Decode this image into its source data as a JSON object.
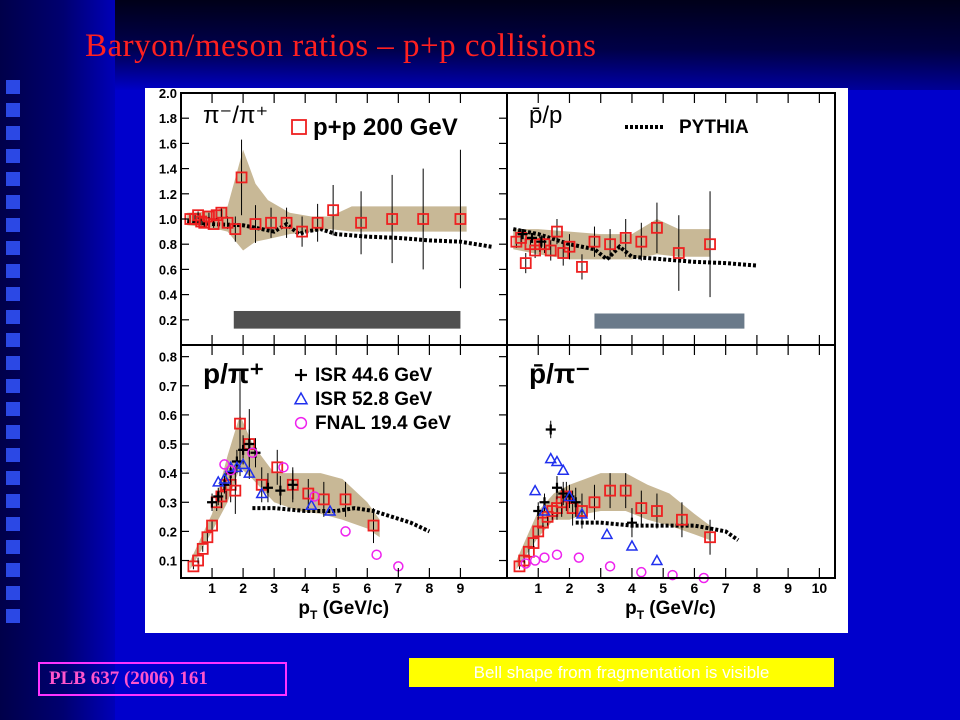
{
  "slide": {
    "title": "Baryon/meson ratios – p+p collisions",
    "reference": "PLB 637 (2006) 161",
    "note": "Bell shape from fragmentation is visible"
  },
  "colors": {
    "title": "#ff2020",
    "background": "#0000cc",
    "note_background": "#ffff00",
    "reference_border": "#ff33ff",
    "pp200": "#ee2020",
    "isr446": "#000000",
    "isr528": "#2030ee",
    "fnal194": "#ee22ee",
    "band": "#c8b896",
    "pythia": "#000000"
  },
  "chart_data": [
    {
      "type": "scatter",
      "panel_label": "π⁻/π⁺",
      "x_ticks": [
        1,
        2,
        3,
        4,
        5,
        6,
        7,
        8,
        9
      ],
      "y_ticks": [
        "0.2",
        "0.4",
        "0.6",
        "0.8",
        "1.0",
        "1.2",
        "1.4",
        "1.6",
        "1.8",
        "2.0"
      ],
      "xlim": [
        0,
        10.5
      ],
      "ylim": [
        0,
        2.0
      ],
      "legend": [
        {
          "name": "p+p 200 GeV",
          "marker": "square"
        }
      ],
      "series": [
        {
          "name": "p+p 200 GeV",
          "x": [
            0.3,
            0.45,
            0.55,
            0.65,
            0.75,
            0.9,
            1.05,
            1.15,
            1.3,
            1.5,
            1.75,
            1.95,
            2.4,
            2.9,
            3.4,
            3.9,
            4.4,
            4.9,
            5.8,
            6.8,
            7.8,
            9.0
          ],
          "y": [
            1.0,
            1.0,
            1.03,
            0.98,
            0.97,
            1.02,
            0.96,
            1.03,
            1.05,
            0.97,
            0.92,
            1.33,
            0.96,
            0.97,
            0.97,
            0.9,
            0.97,
            1.07,
            0.97,
            1.0,
            1.0,
            1.0
          ],
          "err": [
            0.03,
            0.03,
            0.03,
            0.03,
            0.03,
            0.03,
            0.03,
            0.03,
            0.04,
            0.05,
            0.1,
            0.3,
            0.15,
            0.12,
            0.12,
            0.12,
            0.15,
            0.2,
            0.25,
            0.35,
            0.4,
            0.55
          ]
        }
      ],
      "band": {
        "x": [
          0.2,
          1.0,
          1.5,
          2.0,
          2.4,
          2.8,
          3.5,
          4.2,
          4.8,
          5.5,
          6.5,
          7.5,
          8.5,
          9.2
        ],
        "lo": [
          0.95,
          0.93,
          0.9,
          0.75,
          0.82,
          0.84,
          0.88,
          0.9,
          0.92,
          0.9,
          0.9,
          0.9,
          0.9,
          0.9
        ],
        "hi": [
          1.05,
          1.06,
          1.1,
          1.55,
          1.28,
          1.15,
          1.05,
          1.02,
          1.02,
          1.1,
          1.1,
          1.1,
          1.1,
          1.1
        ]
      },
      "pythia": {
        "x": [
          0.2,
          1.0,
          2.0,
          3.0,
          3.4,
          3.8,
          4.0,
          4.5,
          5.0,
          6.0,
          7.0,
          8.0,
          9.0,
          10.0
        ],
        "y": [
          0.98,
          0.96,
          0.95,
          0.9,
          0.96,
          0.88,
          0.9,
          0.92,
          0.88,
          0.86,
          0.85,
          0.83,
          0.82,
          0.78
        ]
      },
      "gray_bar": {
        "x": [
          1.7,
          9.0
        ],
        "y": [
          0.13,
          0.27
        ],
        "color": "#505050"
      }
    },
    {
      "type": "scatter",
      "panel_label": "p̄/p",
      "x_ticks": [
        1,
        2,
        3,
        4,
        5,
        6,
        7,
        8,
        9,
        10
      ],
      "xlim": [
        0,
        10.5
      ],
      "ylim": [
        0,
        2.0
      ],
      "legend": [
        {
          "name": "PYTHIA",
          "marker": "dotted-line"
        }
      ],
      "series": [
        {
          "name": "p+p 200 GeV",
          "x": [
            0.3,
            0.45,
            0.6,
            0.75,
            0.9,
            1.05,
            1.2,
            1.4,
            1.6,
            1.8,
            2.0,
            2.4,
            2.8,
            3.3,
            3.8,
            4.3,
            4.8,
            5.5,
            6.5
          ],
          "y": [
            0.82,
            0.85,
            0.65,
            0.8,
            0.75,
            0.8,
            0.8,
            0.75,
            0.9,
            0.73,
            0.78,
            0.62,
            0.82,
            0.8,
            0.85,
            0.82,
            0.93,
            0.73,
            0.8
          ],
          "err": [
            0.05,
            0.05,
            0.08,
            0.05,
            0.06,
            0.06,
            0.07,
            0.08,
            0.1,
            0.1,
            0.1,
            0.1,
            0.12,
            0.12,
            0.15,
            0.15,
            0.2,
            0.3,
            0.42
          ]
        },
        {
          "name": "ISR 44.6 GeV",
          "x": [
            0.5,
            0.8,
            1.1
          ],
          "y": [
            0.88,
            0.85,
            0.82
          ],
          "err": [
            0.04,
            0.04,
            0.05
          ]
        }
      ],
      "band": {
        "x": [
          0.2,
          1.0,
          2.0,
          3.0,
          4.0,
          4.8,
          5.5,
          6.5
        ],
        "lo": [
          0.76,
          0.72,
          0.68,
          0.68,
          0.68,
          0.72,
          0.7,
          0.7
        ],
        "hi": [
          0.92,
          0.92,
          0.9,
          0.88,
          0.88,
          1.0,
          0.92,
          0.92
        ]
      },
      "pythia": {
        "x": [
          0.2,
          1.0,
          2.0,
          2.8,
          3.2,
          3.6,
          4.0,
          5.0,
          6.0,
          7.0,
          8.0
        ],
        "y": [
          0.92,
          0.88,
          0.8,
          0.76,
          0.68,
          0.78,
          0.7,
          0.68,
          0.66,
          0.65,
          0.63
        ]
      },
      "gray_bar": {
        "x": [
          2.8,
          7.6
        ],
        "y": [
          0.13,
          0.25
        ],
        "color": "#6a7a8a"
      }
    },
    {
      "type": "scatter",
      "panel_label": "p/π⁺",
      "x_ticks": [
        1,
        2,
        3,
        4,
        5,
        6,
        7,
        8,
        9
      ],
      "y_ticks": [
        "0.1",
        "0.2",
        "0.3",
        "0.4",
        "0.5",
        "0.6",
        "0.7",
        "0.8"
      ],
      "xlabel": "p_T (GeV/c)",
      "xlim": [
        0,
        10.5
      ],
      "ylim": [
        0.04,
        0.84
      ],
      "legend": [
        {
          "name": "ISR 44.6 GeV",
          "marker": "cross"
        },
        {
          "name": "ISR 52.8 GeV",
          "marker": "triangle"
        },
        {
          "name": "FNAL 19.4 GeV",
          "marker": "circle"
        }
      ],
      "series": [
        {
          "name": "p+p 200 GeV",
          "x": [
            0.4,
            0.55,
            0.7,
            0.85,
            1.0,
            1.15,
            1.3,
            1.45,
            1.6,
            1.75,
            1.9,
            2.2,
            2.6,
            3.1,
            3.6,
            4.1,
            4.6,
            5.3,
            6.2
          ],
          "y": [
            0.08,
            0.1,
            0.14,
            0.18,
            0.22,
            0.3,
            0.32,
            0.36,
            0.36,
            0.34,
            0.57,
            0.5,
            0.36,
            0.42,
            0.36,
            0.33,
            0.31,
            0.31,
            0.22
          ],
          "err": [
            0.01,
            0.01,
            0.01,
            0.02,
            0.02,
            0.03,
            0.04,
            0.05,
            0.06,
            0.08,
            0.18,
            0.12,
            0.06,
            0.06,
            0.05,
            0.05,
            0.06,
            0.06,
            0.06
          ]
        },
        {
          "name": "ISR 44.6 GeV",
          "x": [
            1.0,
            1.2,
            1.4,
            1.6,
            1.8,
            2.0,
            2.2,
            2.4,
            2.8,
            3.2,
            3.6
          ],
          "y": [
            0.3,
            0.32,
            0.36,
            0.4,
            0.44,
            0.48,
            0.5,
            0.47,
            0.35,
            0.34,
            0.36
          ],
          "err": [
            0.03,
            0.03,
            0.03,
            0.03,
            0.04,
            0.05,
            0.05,
            0.05,
            0.05,
            0.05,
            0.06
          ]
        },
        {
          "name": "ISR 52.8 GeV",
          "x": [
            1.2,
            1.4,
            1.6,
            1.8,
            2.0,
            2.2,
            2.6,
            4.2,
            4.8
          ],
          "y": [
            0.37,
            0.38,
            0.42,
            0.42,
            0.43,
            0.4,
            0.33,
            0.29,
            0.27
          ],
          "err": []
        },
        {
          "name": "FNAL 19.4 GeV",
          "x": [
            1.4,
            1.6,
            2.3,
            3.3,
            4.3,
            5.3,
            6.3,
            7.0
          ],
          "y": [
            0.43,
            0.41,
            0.47,
            0.42,
            0.32,
            0.2,
            0.12,
            0.08
          ],
          "err": []
        }
      ],
      "band": {
        "x": [
          0.3,
          1.0,
          1.5,
          1.9,
          2.3,
          3.0,
          3.8,
          4.5,
          5.2,
          6.0,
          6.4
        ],
        "lo": [
          0.07,
          0.2,
          0.3,
          0.42,
          0.38,
          0.3,
          0.27,
          0.26,
          0.24,
          0.21,
          0.18
        ],
        "hi": [
          0.1,
          0.26,
          0.46,
          0.6,
          0.5,
          0.4,
          0.4,
          0.4,
          0.38,
          0.3,
          0.24
        ]
      },
      "pythia": {
        "x": [
          2.3,
          3.0,
          4.0,
          5.0,
          5.6,
          6.2,
          6.8,
          7.4,
          8.0
        ],
        "y": [
          0.28,
          0.28,
          0.27,
          0.27,
          0.28,
          0.27,
          0.25,
          0.23,
          0.2
        ]
      }
    },
    {
      "type": "scatter",
      "panel_label": "p̄/π⁻",
      "x_ticks": [
        1,
        2,
        3,
        4,
        5,
        6,
        7,
        8,
        9,
        10
      ],
      "xlabel": "p_T (GeV/c)",
      "xlim": [
        0,
        10.5
      ],
      "ylim": [
        0.04,
        0.84
      ],
      "series": [
        {
          "name": "p+p 200 GeV",
          "x": [
            0.4,
            0.55,
            0.7,
            0.85,
            1.0,
            1.15,
            1.3,
            1.45,
            1.6,
            1.75,
            1.9,
            2.1,
            2.4,
            2.8,
            3.3,
            3.8,
            4.3,
            4.8,
            5.6,
            6.5
          ],
          "y": [
            0.08,
            0.1,
            0.13,
            0.16,
            0.2,
            0.23,
            0.25,
            0.27,
            0.28,
            0.3,
            0.32,
            0.28,
            0.27,
            0.3,
            0.34,
            0.34,
            0.28,
            0.27,
            0.24,
            0.18
          ],
          "err": [
            0.01,
            0.01,
            0.01,
            0.02,
            0.02,
            0.02,
            0.03,
            0.03,
            0.04,
            0.05,
            0.05,
            0.06,
            0.06,
            0.06,
            0.06,
            0.06,
            0.06,
            0.06,
            0.06,
            0.06
          ]
        },
        {
          "name": "ISR 44.6 GeV",
          "x": [
            1.0,
            1.2,
            1.4,
            1.6,
            1.8,
            2.0,
            2.2,
            4.0
          ],
          "y": [
            0.27,
            0.3,
            0.55,
            0.35,
            0.33,
            0.32,
            0.3,
            0.23
          ],
          "err": [
            0.03,
            0.03,
            0.03,
            0.04,
            0.04,
            0.04,
            0.05,
            0.05
          ]
        },
        {
          "name": "ISR 52.8 GeV",
          "x": [
            0.9,
            1.2,
            1.4,
            1.6,
            1.8,
            2.0,
            2.4,
            3.2,
            4.0,
            4.8
          ],
          "y": [
            0.34,
            0.27,
            0.45,
            0.44,
            0.41,
            0.32,
            0.26,
            0.19,
            0.15,
            0.1
          ],
          "err": []
        },
        {
          "name": "FNAL 19.4 GeV",
          "x": [
            0.6,
            0.9,
            1.2,
            1.6,
            2.3,
            3.3,
            4.3,
            5.3,
            6.3
          ],
          "y": [
            0.09,
            0.1,
            0.11,
            0.12,
            0.11,
            0.08,
            0.06,
            0.05,
            0.04
          ],
          "err": []
        }
      ],
      "band": {
        "x": [
          0.3,
          1.0,
          1.5,
          2.0,
          2.5,
          3.0,
          3.8,
          4.5,
          5.2,
          6.0,
          6.5
        ],
        "lo": [
          0.07,
          0.18,
          0.24,
          0.24,
          0.26,
          0.27,
          0.27,
          0.24,
          0.22,
          0.19,
          0.17
        ],
        "hi": [
          0.1,
          0.27,
          0.33,
          0.36,
          0.38,
          0.4,
          0.4,
          0.36,
          0.33,
          0.26,
          0.22
        ]
      },
      "pythia": {
        "x": [
          2.2,
          3.0,
          4.0,
          5.0,
          6.0,
          6.5,
          7.0,
          7.4
        ],
        "y": [
          0.23,
          0.23,
          0.22,
          0.22,
          0.22,
          0.21,
          0.2,
          0.17
        ]
      }
    }
  ]
}
